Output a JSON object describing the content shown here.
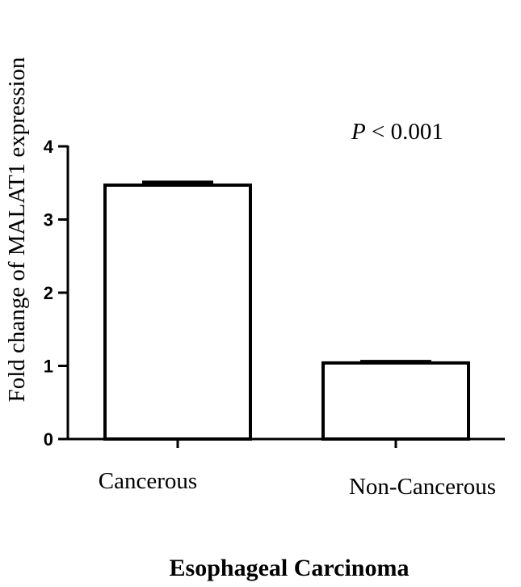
{
  "chart_data": {
    "type": "bar",
    "title": "",
    "xlabel": "Esophageal Carcinoma",
    "ylabel": "Fold change of MALAT1 expression",
    "categories": [
      "Cancerous",
      "Non-Cancerous"
    ],
    "values": [
      3.47,
      1.04
    ],
    "errors": [
      0.04,
      0.02
    ],
    "ylim": [
      0,
      4
    ],
    "yticks": [
      "0",
      "1",
      "2",
      "3",
      "4"
    ],
    "annotation": {
      "italic": "P",
      "rest": " < 0.001"
    },
    "grid": false,
    "legend": "none"
  }
}
